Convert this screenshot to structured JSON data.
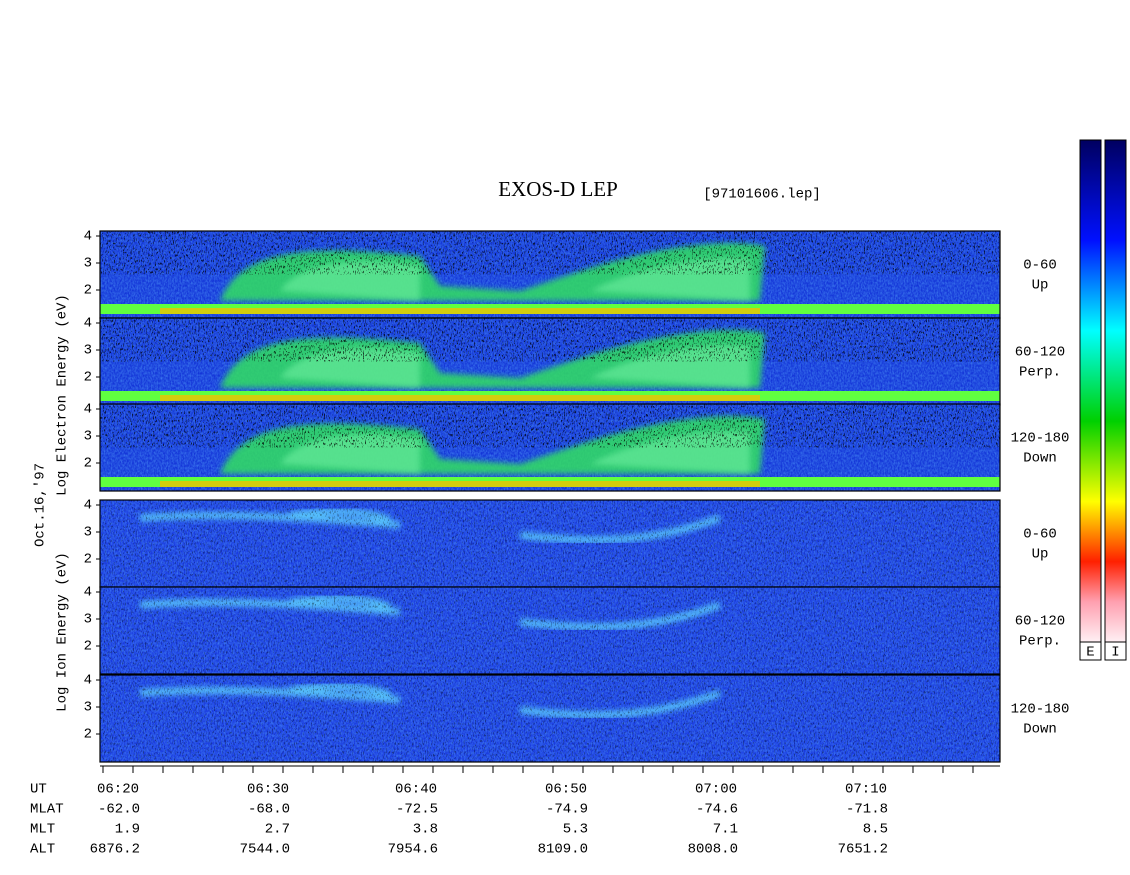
{
  "title": "EXOS-D LEP",
  "file": "[97101606.lep]",
  "date": "Oct.16,'97",
  "electron_axis_label": "Log  Electron  Energy (eV)",
  "ion_axis_label": "Log  Ion  Energy (eV)",
  "energy_ticks": [
    "4",
    "3",
    "2"
  ],
  "panels": [
    {
      "group": "electron",
      "angle": "0-60",
      "direction": "Up"
    },
    {
      "group": "electron",
      "angle": "60-120",
      "direction": "Perp."
    },
    {
      "group": "electron",
      "angle": "120-180",
      "direction": "Down"
    },
    {
      "group": "ion",
      "angle": "0-60",
      "direction": "Up"
    },
    {
      "group": "ion",
      "angle": "60-120",
      "direction": "Perp."
    },
    {
      "group": "ion",
      "angle": "120-180",
      "direction": "Down"
    }
  ],
  "colorbar_labels": [
    "E",
    "I"
  ],
  "time_ticks": [
    "06:20",
    "06:30",
    "06:40",
    "06:50",
    "07:00",
    "07:10"
  ],
  "orbit": {
    "ut_label": "UT",
    "rows": [
      {
        "label": "MLAT",
        "values": [
          "-62.0",
          "-68.0",
          "-72.5",
          "-74.9",
          "-74.6",
          "-71.8"
        ]
      },
      {
        "label": "MLT",
        "values": [
          "1.9",
          "2.7",
          "3.8",
          "5.3",
          "7.1",
          "8.5"
        ]
      },
      {
        "label": "ALT",
        "values": [
          "6876.2",
          "7544.0",
          "7954.6",
          "8109.0",
          "8008.0",
          "7651.2"
        ]
      }
    ]
  }
}
